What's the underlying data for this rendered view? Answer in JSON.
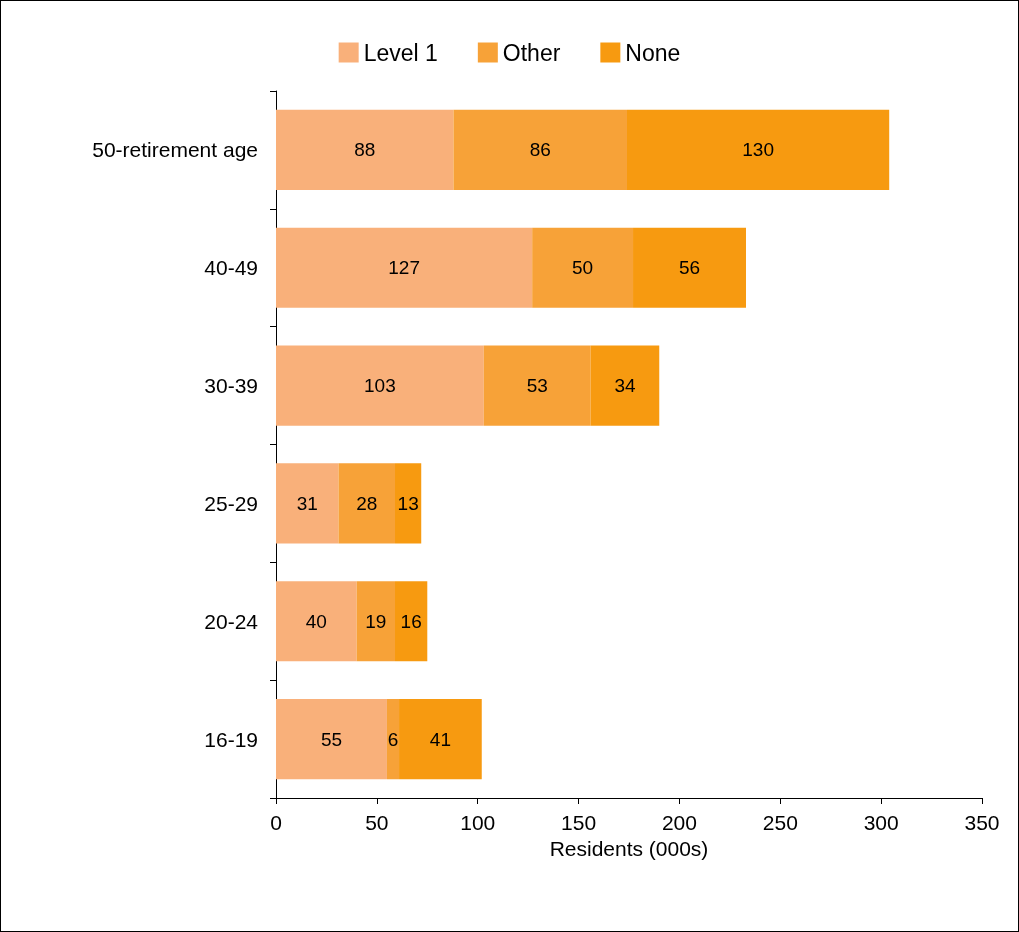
{
  "chart_data": {
    "type": "bar",
    "orientation": "horizontal",
    "stacked": true,
    "xlabel": "Residents (000s)",
    "categories": [
      "50-retirement age",
      "40-49",
      "30-39",
      "25-29",
      "20-24",
      "16-19"
    ],
    "series": [
      {
        "name": "Level 1",
        "color": "#f9b07a",
        "values": [
          88,
          127,
          103,
          31,
          40,
          55
        ]
      },
      {
        "name": "Other",
        "color": "#f7a238",
        "values": [
          86,
          50,
          53,
          28,
          19,
          6
        ]
      },
      {
        "name": "None",
        "color": "#f79a10",
        "values": [
          130,
          56,
          34,
          13,
          16,
          41
        ]
      }
    ],
    "xlim": [
      0,
      350
    ],
    "xticks": [
      0,
      50,
      100,
      150,
      200,
      250,
      300,
      350
    ],
    "grid": false,
    "legend": "top",
    "data_labels": true
  }
}
